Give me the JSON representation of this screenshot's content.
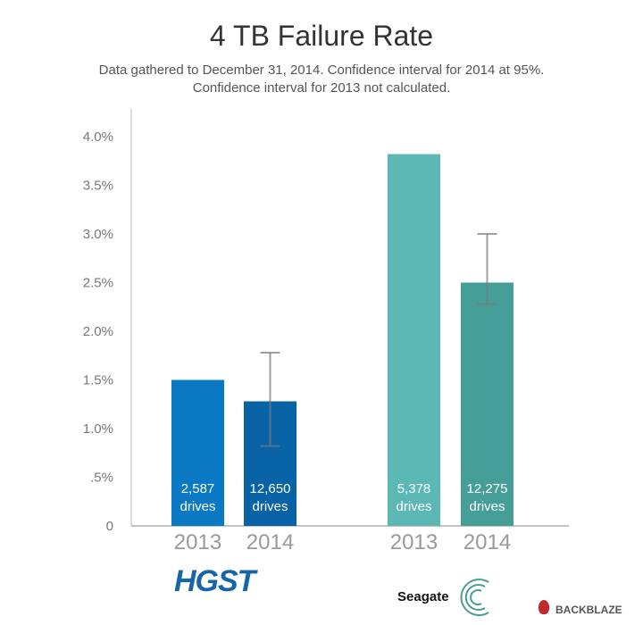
{
  "chart_data": {
    "type": "bar",
    "title": "4 TB Failure Rate",
    "subtitle": [
      "Data gathered to December 31, 2014. Confidence interval for 2014 at 95%.",
      "Confidence interval for 2013 not calculated."
    ],
    "ylim": [
      0,
      4.0
    ],
    "yticks": [
      "0",
      ".5%",
      "1.0%",
      "1.5%",
      "2.0%",
      "2.5%",
      "3.0%",
      "3.5%",
      "4.0%"
    ],
    "groups": [
      {
        "name": "HGST",
        "bars": [
          {
            "year": "2013",
            "value": 1.5,
            "drives": "2,587",
            "color": "#0a78c2"
          },
          {
            "year": "2014",
            "value": 1.28,
            "drives": "12,650",
            "color": "#0762a6",
            "ci": [
              0.82,
              1.78
            ]
          }
        ]
      },
      {
        "name": "Seagate",
        "bars": [
          {
            "year": "2013",
            "value": 3.82,
            "drives": "5,378",
            "color": "#5bb8b4"
          },
          {
            "year": "2014",
            "value": 2.5,
            "drives": "12,275",
            "color": "#469e98",
            "ci": [
              2.28,
              3.0
            ]
          }
        ]
      }
    ],
    "drives_label": "drives"
  },
  "logos": {
    "hgst": "HGST",
    "seagate": "Seagate",
    "backblaze": "BACKBLAZE"
  }
}
